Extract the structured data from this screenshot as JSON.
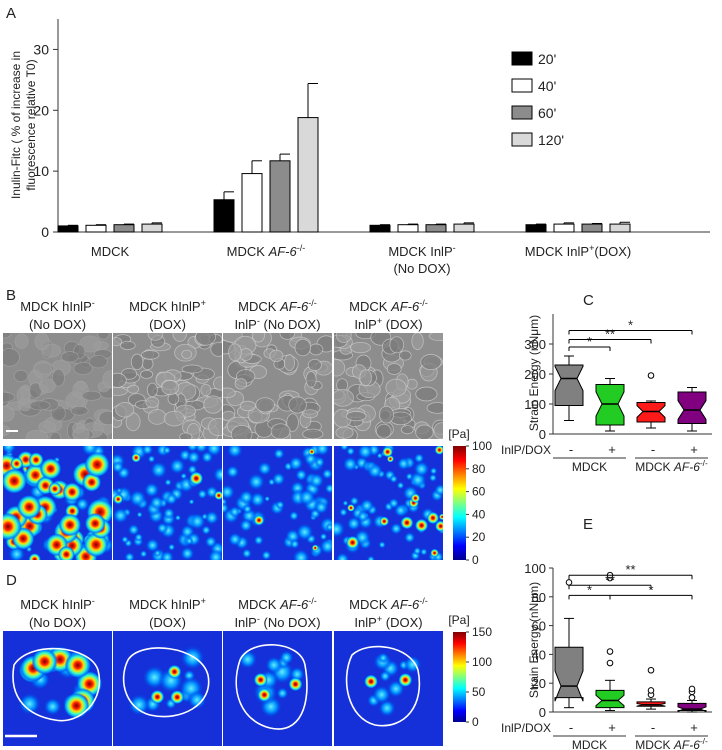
{
  "panel_labels": [
    "A",
    "B",
    "C",
    "D",
    "E"
  ],
  "chart_data": [
    {
      "type": "bar",
      "ylabel": [
        [
          "Inulin-Fitc ( % of increase in"
        ],
        [
          "fluorescence relative T0)"
        ]
      ],
      "categories": [
        [
          [
            "MDCK"
          ]
        ],
        [
          [
            "MDCK  ",
            {
              "text": "AF-6",
              "style": "italic"
            },
            {
              "text": "-/-",
              "style": "sup"
            }
          ]
        ],
        [
          [
            "MDCK InlP",
            {
              "text": "-",
              "style": "sup"
            }
          ],
          [
            "(No DOX)"
          ]
        ],
        [
          [
            "MDCK InlP",
            {
              "text": "+",
              "style": "sup"
            },
            "(DOX)"
          ]
        ]
      ],
      "series": [
        {
          "name": "20'",
          "color": "#000000",
          "values": [
            1.0,
            5.3,
            1.1,
            1.2
          ],
          "errors": [
            0.1,
            1.3,
            0.1,
            0.1
          ]
        },
        {
          "name": "40'",
          "color": "#ffffff",
          "values": [
            1.1,
            9.6,
            1.2,
            1.3
          ],
          "errors": [
            0.1,
            2.1,
            0.1,
            0.2
          ]
        },
        {
          "name": "60'",
          "color": "#8c8c8c",
          "values": [
            1.2,
            11.7,
            1.2,
            1.3
          ],
          "errors": [
            0.1,
            1.1,
            0.1,
            0.1
          ]
        },
        {
          "name": "120'",
          "color": "#d9d9d9",
          "values": [
            1.3,
            18.8,
            1.3,
            1.3
          ],
          "errors": [
            0.2,
            5.6,
            0.2,
            0.3
          ]
        }
      ],
      "ylim": [
        0,
        35
      ],
      "yticks": [
        0,
        10,
        20,
        30
      ],
      "legend": "upper right"
    },
    {
      "type": "box",
      "ylabel": "Strain Energy (nNμm)",
      "categories": [
        "-",
        "+",
        "-",
        "+"
      ],
      "x_row_label": "InlP/DOX",
      "groups": [
        {
          "label": [
            [
              "MDCK"
            ]
          ],
          "span": [
            0,
            1
          ]
        },
        {
          "label": [
            [
              "MDCK ",
              {
                "text": "AF-6",
                "style": "italic"
              },
              {
                "text": "-/-",
                "style": "sup"
              }
            ]
          ],
          "span": [
            2,
            3
          ]
        }
      ],
      "boxes": [
        {
          "color": "#808080",
          "low": 45,
          "q1": 95,
          "median": 185,
          "q3": 230,
          "high": 260,
          "outliers": []
        },
        {
          "color": "#22cc22",
          "low": 10,
          "q1": 30,
          "median": 100,
          "q3": 165,
          "high": 185,
          "outliers": []
        },
        {
          "color": "#ff1a1a",
          "low": 20,
          "q1": 40,
          "median": 75,
          "q3": 105,
          "high": 110,
          "outliers": [
            195
          ]
        },
        {
          "color": "#800080",
          "low": 10,
          "q1": 35,
          "median": 80,
          "q3": 140,
          "high": 155,
          "outliers": []
        }
      ],
      "significance": [
        {
          "from": 0,
          "to": 1,
          "y": 290,
          "label": "*"
        },
        {
          "from": 0,
          "to": 2,
          "y": 315,
          "label": "**"
        },
        {
          "from": 0,
          "to": 3,
          "y": 345,
          "label": "*"
        }
      ],
      "notch": true,
      "ylim": [
        0,
        400
      ],
      "yticks": [
        0,
        100,
        200,
        300
      ]
    },
    {
      "type": "box",
      "ylabel": "Strain Energy (nNμm)",
      "categories": [
        "-",
        "+",
        "-",
        "+"
      ],
      "x_row_label": "InlP/DOX",
      "groups": [
        {
          "label": [
            [
              "MDCK"
            ]
          ],
          "span": [
            0,
            1
          ]
        },
        {
          "label": [
            [
              "MDCK ",
              {
                "text": "AF-6",
                "style": "italic"
              },
              {
                "text": "-/-",
                "style": "sup"
              }
            ]
          ],
          "span": [
            2,
            3
          ]
        }
      ],
      "boxes": [
        {
          "color": "#808080",
          "low": 3,
          "q1": 10,
          "median": 18,
          "q3": 45,
          "high": 65,
          "outliers": [
            90
          ]
        },
        {
          "color": "#22cc22",
          "low": 1,
          "q1": 3,
          "median": 8,
          "q3": 15,
          "high": 22,
          "outliers": [
            34,
            42,
            93,
            95
          ]
        },
        {
          "color": "#ff1a1a",
          "low": 2,
          "q1": 4,
          "median": 5,
          "q3": 7,
          "high": 9,
          "outliers": [
            12,
            15,
            29
          ]
        },
        {
          "color": "#800080",
          "low": 0,
          "q1": 1,
          "median": 2,
          "q3": 6,
          "high": 8,
          "outliers": [
            10,
            14,
            16
          ]
        }
      ],
      "significance": [
        {
          "from": 0,
          "to": 3,
          "y": 95,
          "label": "**"
        },
        {
          "from": 0,
          "to": 2,
          "y": 88,
          "label": "**"
        },
        {
          "from": 0,
          "to": 1,
          "y": 81,
          "label": "*"
        },
        {
          "from": 1,
          "to": 3,
          "y": 81,
          "label": "*"
        }
      ],
      "notch": true,
      "ylim": [
        0,
        100
      ],
      "yticks": [
        0,
        20,
        40,
        60,
        80,
        100
      ]
    }
  ],
  "panel_b": {
    "columns": [
      [
        [
          "MDCK hInlP",
          {
            "text": "-",
            "style": "sup"
          }
        ],
        [
          "(No DOX)"
        ]
      ],
      [
        [
          "MDCK hInlP",
          {
            "text": "+",
            "style": "sup"
          }
        ],
        [
          "(DOX)"
        ]
      ],
      [
        [
          "MDCK ",
          {
            "text": "AF-6",
            "style": "italic"
          },
          {
            "text": "-/-",
            "style": "sup"
          }
        ],
        [
          "InlP",
          {
            "text": "-",
            "style": "sup"
          },
          " (No DOX)"
        ]
      ],
      [
        [
          "MDCK ",
          {
            "text": "AF-6",
            "style": "italic"
          },
          {
            "text": "-/-",
            "style": "sup"
          }
        ],
        [
          "InlP",
          {
            "text": "+",
            "style": "sup"
          },
          " (DOX)"
        ]
      ]
    ],
    "colorbar": {
      "unit": "[Pa]",
      "lim": [
        0,
        100
      ],
      "ticks": [
        0,
        20,
        40,
        60,
        80,
        100
      ]
    }
  },
  "panel_d": {
    "columns": [
      [
        [
          "MDCK hInlP",
          {
            "text": "-",
            "style": "sup"
          }
        ],
        [
          "(No DOX)"
        ]
      ],
      [
        [
          "MDCK hInlP",
          {
            "text": "+",
            "style": "sup"
          }
        ],
        [
          "(DOX)"
        ]
      ],
      [
        [
          "MDCK ",
          {
            "text": "AF-6",
            "style": "italic"
          },
          {
            "text": "-/-",
            "style": "sup"
          }
        ],
        [
          "InlP",
          {
            "text": "-",
            "style": "sup"
          },
          " (No DOX)"
        ]
      ],
      [
        [
          "MDCK ",
          {
            "text": "AF-6",
            "style": "italic"
          },
          {
            "text": "-/-",
            "style": "sup"
          }
        ],
        [
          "InlP",
          {
            "text": "+",
            "style": "sup"
          },
          " (DOX)"
        ]
      ]
    ],
    "colorbar": {
      "unit": "[Pa]",
      "lim": [
        0,
        150
      ],
      "ticks": [
        0,
        50,
        100,
        150
      ]
    }
  }
}
